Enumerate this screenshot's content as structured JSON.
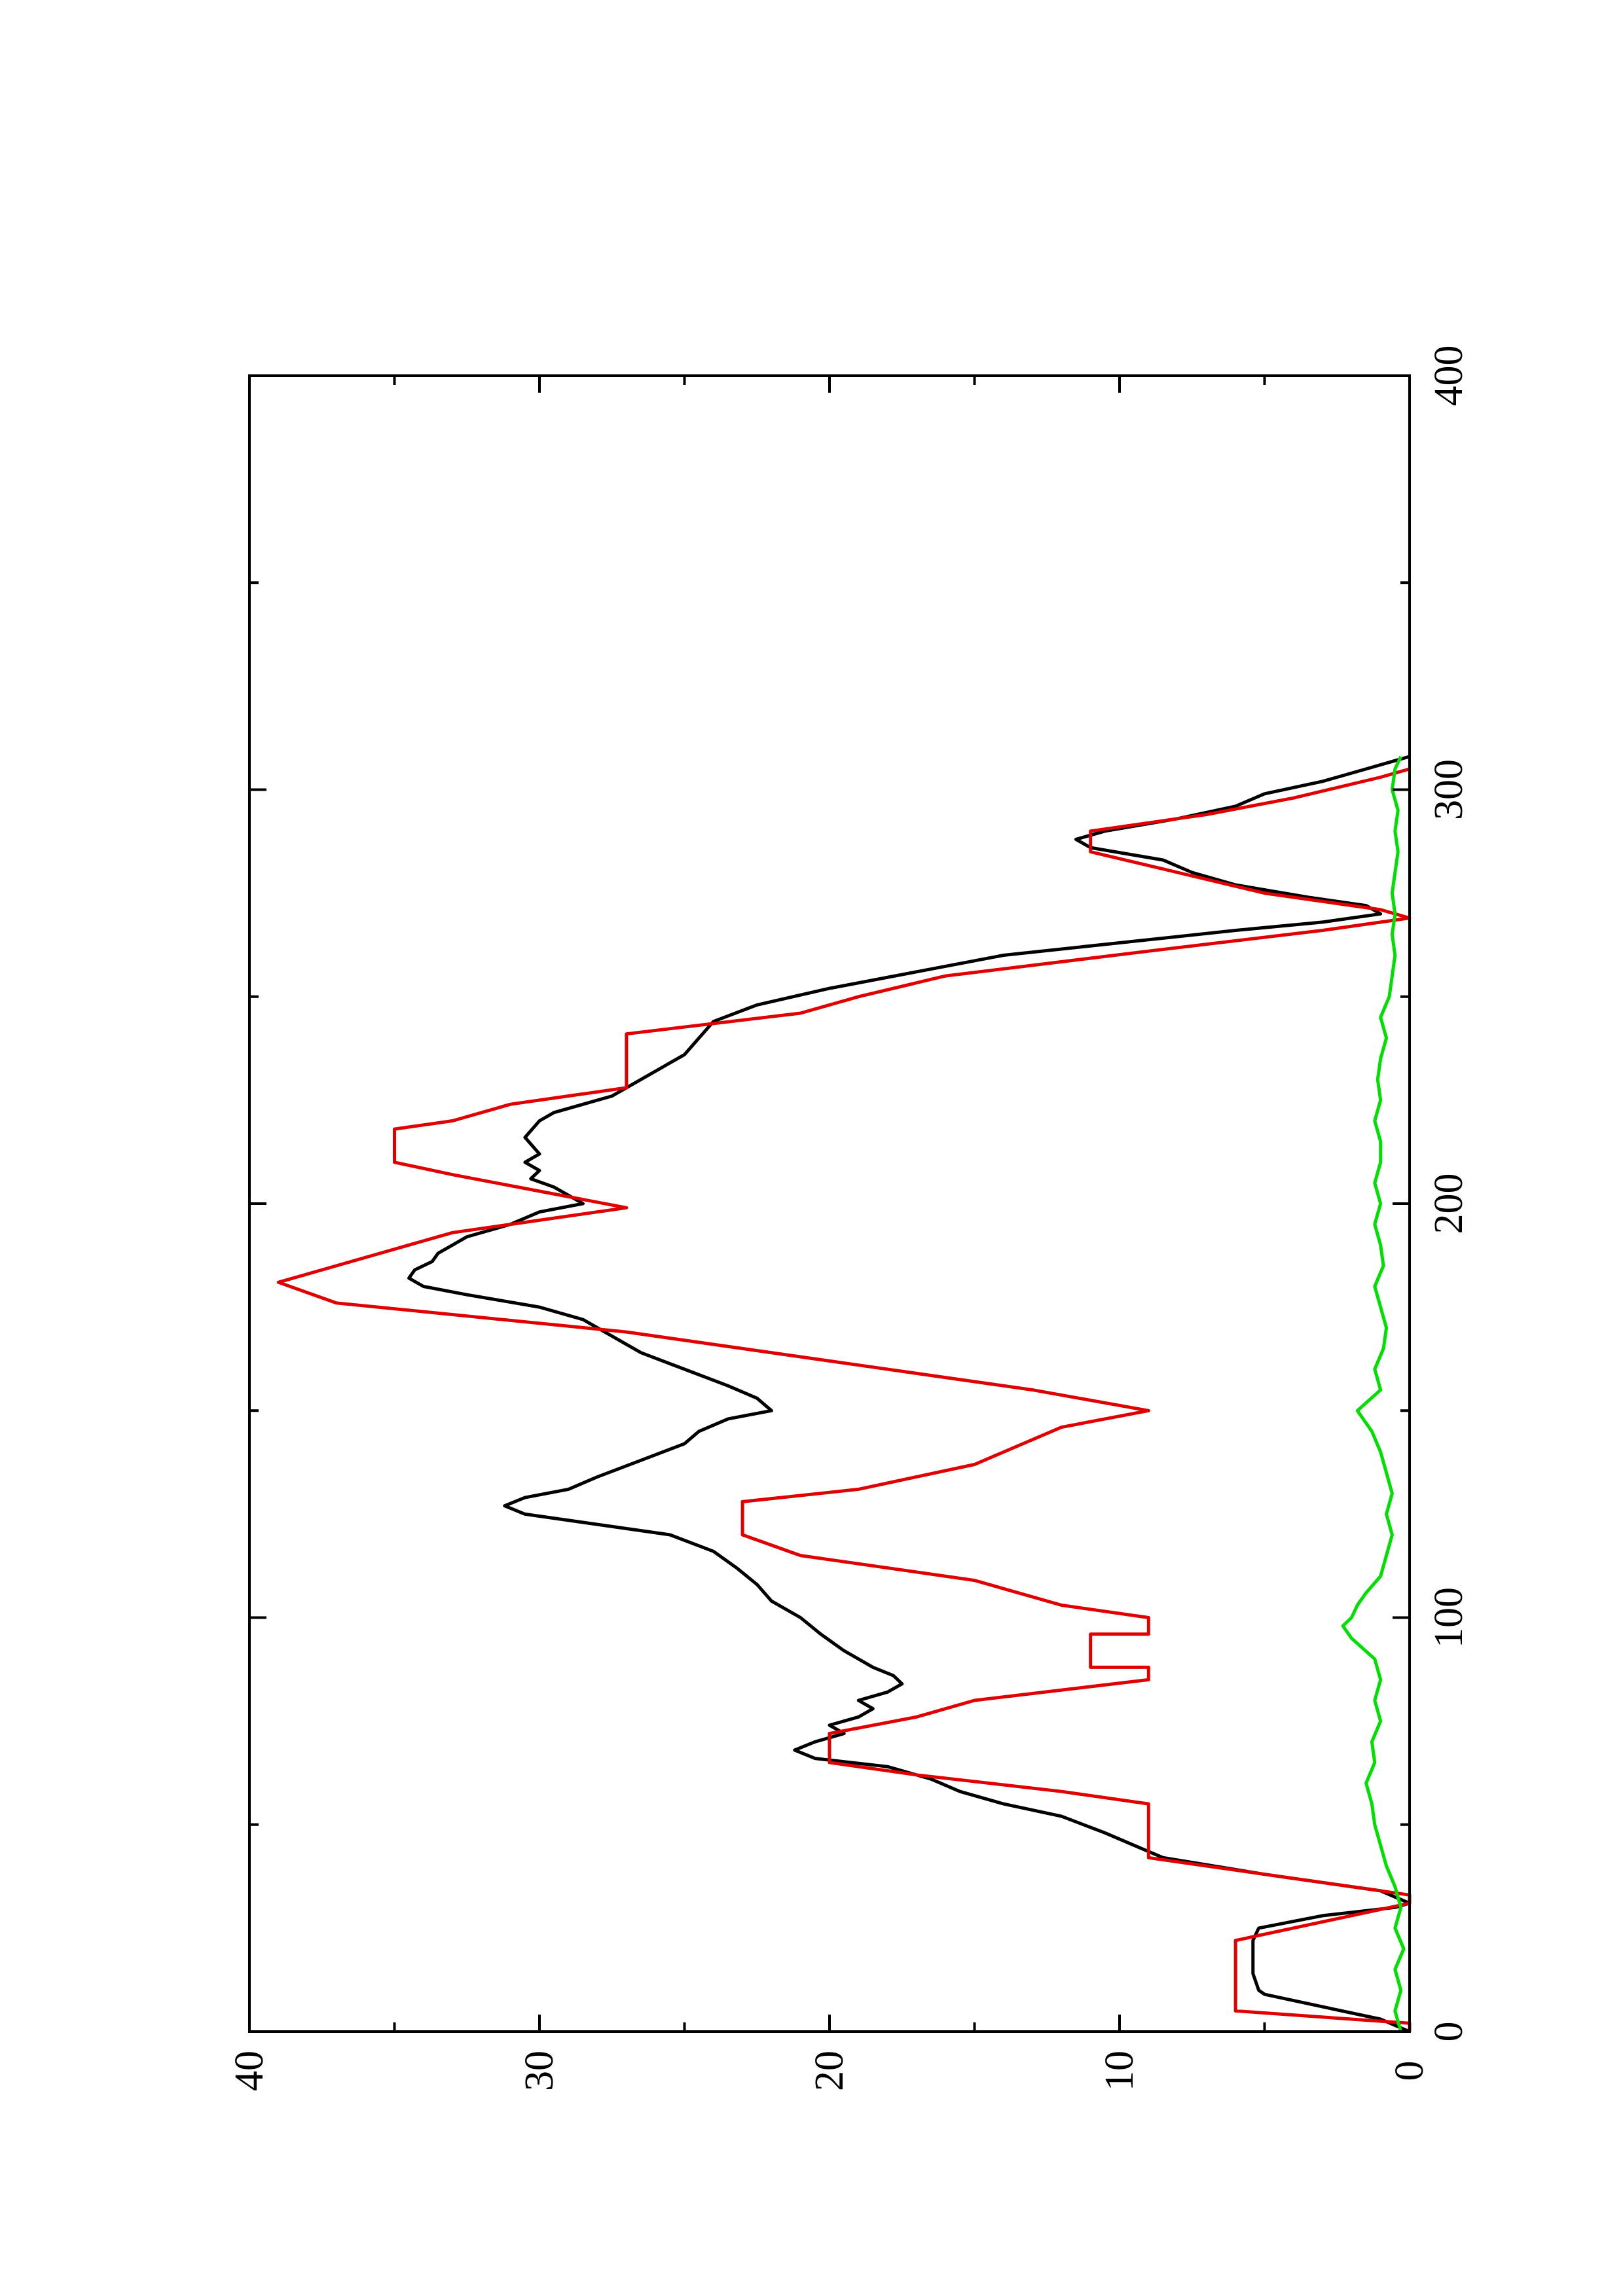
{
  "chart_data": {
    "type": "line",
    "title": "",
    "xlabel": "",
    "ylabel": "",
    "orientation": "rotated 90 degrees counter-clockwise",
    "xlim": [
      0,
      400
    ],
    "ylim": [
      0,
      40
    ],
    "x_ticks": [
      "0",
      "100",
      "200",
      "300",
      "400"
    ],
    "y_ticks": [
      "0",
      "10",
      "20",
      "30",
      "40"
    ],
    "grid": false,
    "legend": "none",
    "series": [
      {
        "color": "#000000",
        "step": false,
        "points": [
          [
            0,
            0
          ],
          [
            3,
            1
          ],
          [
            6,
            3
          ],
          [
            9,
            5
          ],
          [
            10,
            5.2
          ],
          [
            14,
            5.4
          ],
          [
            18,
            5.4
          ],
          [
            22,
            5.4
          ],
          [
            25,
            5.2
          ],
          [
            28,
            3
          ],
          [
            30,
            0.5
          ],
          [
            31,
            0
          ],
          [
            34,
            1
          ],
          [
            38,
            5
          ],
          [
            42,
            8.5
          ],
          [
            45,
            9.5
          ],
          [
            48,
            10.5
          ],
          [
            52,
            12
          ],
          [
            55,
            14
          ],
          [
            58,
            15.5
          ],
          [
            61,
            16.5
          ],
          [
            64,
            18
          ],
          [
            66,
            20.5
          ],
          [
            68,
            21.2
          ],
          [
            70,
            20.5
          ],
          [
            72,
            19.5
          ],
          [
            74,
            20
          ],
          [
            76,
            19
          ],
          [
            78,
            18.5
          ],
          [
            80,
            19
          ],
          [
            82,
            18
          ],
          [
            84,
            17.5
          ],
          [
            86,
            17.8
          ],
          [
            88,
            18.5
          ],
          [
            92,
            19.5
          ],
          [
            96,
            20.3
          ],
          [
            100,
            21
          ],
          [
            104,
            22
          ],
          [
            108,
            22.5
          ],
          [
            112,
            23.2
          ],
          [
            116,
            24
          ],
          [
            120,
            25.5
          ],
          [
            123,
            28.5
          ],
          [
            125,
            30.5
          ],
          [
            127,
            31.2
          ],
          [
            129,
            30.5
          ],
          [
            131,
            29
          ],
          [
            134,
            28
          ],
          [
            138,
            26.5
          ],
          [
            142,
            25
          ],
          [
            145,
            24.5
          ],
          [
            148,
            23.5
          ],
          [
            150,
            22
          ],
          [
            153,
            22.5
          ],
          [
            156,
            23.5
          ],
          [
            160,
            25
          ],
          [
            164,
            26.5
          ],
          [
            168,
            27.5
          ],
          [
            172,
            28.5
          ],
          [
            175,
            30
          ],
          [
            178,
            32.5
          ],
          [
            180,
            34
          ],
          [
            182,
            34.5
          ],
          [
            184,
            34.3
          ],
          [
            186,
            33.7
          ],
          [
            188,
            33.5
          ],
          [
            190,
            33
          ],
          [
            192,
            32.5
          ],
          [
            195,
            31
          ],
          [
            198,
            30
          ],
          [
            200,
            28.5
          ],
          [
            202,
            29
          ],
          [
            204,
            29.5
          ],
          [
            206,
            30.3
          ],
          [
            208,
            30
          ],
          [
            210,
            30.5
          ],
          [
            212,
            30
          ],
          [
            216,
            30.5
          ],
          [
            220,
            30
          ],
          [
            222,
            29.5
          ],
          [
            224,
            28.5
          ],
          [
            226,
            27.5
          ],
          [
            230,
            26.5
          ],
          [
            236,
            25
          ],
          [
            240,
            24.5
          ],
          [
            244,
            24
          ],
          [
            248,
            22.5
          ],
          [
            252,
            20
          ],
          [
            256,
            17
          ],
          [
            260,
            14
          ],
          [
            263,
            10
          ],
          [
            266,
            6
          ],
          [
            268,
            3
          ],
          [
            270,
            1
          ],
          [
            272,
            1.5
          ],
          [
            274,
            3.5
          ],
          [
            277,
            6
          ],
          [
            280,
            7.5
          ],
          [
            283,
            8.5
          ],
          [
            286,
            11
          ],
          [
            288,
            11.5
          ],
          [
            290,
            10.5
          ],
          [
            293,
            8
          ],
          [
            296,
            6
          ],
          [
            299,
            5
          ],
          [
            302,
            3
          ],
          [
            305,
            1.5
          ],
          [
            307,
            0.5
          ],
          [
            308,
            0
          ]
        ]
      },
      {
        "color": "#e00000",
        "step": true,
        "points": [
          [
            0,
            0
          ],
          [
            2,
            0
          ],
          [
            5,
            6
          ],
          [
            22,
            6
          ],
          [
            31,
            0
          ],
          [
            33,
            0
          ],
          [
            42,
            9
          ],
          [
            55,
            9
          ],
          [
            58,
            12
          ],
          [
            62,
            17
          ],
          [
            65,
            20
          ],
          [
            72,
            20
          ],
          [
            76,
            17
          ],
          [
            80,
            15
          ],
          [
            85,
            9
          ],
          [
            88,
            9
          ],
          [
            88,
            11
          ],
          [
            96,
            11
          ],
          [
            96,
            9
          ],
          [
            100,
            9
          ],
          [
            103,
            12
          ],
          [
            109,
            15
          ],
          [
            115,
            21
          ],
          [
            120,
            23
          ],
          [
            128,
            23
          ],
          [
            131,
            19
          ],
          [
            137,
            15
          ],
          [
            146,
            12
          ],
          [
            150,
            9
          ],
          [
            155,
            13
          ],
          [
            161,
            19
          ],
          [
            169,
            27
          ],
          [
            176,
            37
          ],
          [
            181,
            39
          ],
          [
            185,
            37
          ],
          [
            193,
            33
          ],
          [
            199,
            27
          ],
          [
            203,
            30
          ],
          [
            207,
            33
          ],
          [
            210,
            35
          ],
          [
            218,
            35
          ],
          [
            220,
            33
          ],
          [
            224,
            31
          ],
          [
            228,
            27
          ],
          [
            241,
            27
          ],
          [
            246,
            21
          ],
          [
            250,
            19
          ],
          [
            255,
            16
          ],
          [
            261,
            9
          ],
          [
            266,
            3
          ],
          [
            269,
            0
          ],
          [
            271,
            1
          ],
          [
            275,
            5
          ],
          [
            280,
            8
          ],
          [
            285,
            11
          ],
          [
            290,
            11
          ],
          [
            294,
            7
          ],
          [
            298,
            4
          ],
          [
            303,
            1
          ],
          [
            305,
            0
          ]
        ]
      },
      {
        "color": "#00e000",
        "step": false,
        "points": [
          [
            0,
            0.3
          ],
          [
            5,
            0.5
          ],
          [
            10,
            0.3
          ],
          [
            15,
            0.5
          ],
          [
            20,
            0.2
          ],
          [
            25,
            0.5
          ],
          [
            30,
            0.3
          ],
          [
            35,
            0.5
          ],
          [
            40,
            0.8
          ],
          [
            45,
            1
          ],
          [
            50,
            1.2
          ],
          [
            55,
            1.3
          ],
          [
            60,
            1.5
          ],
          [
            65,
            1.2
          ],
          [
            70,
            1.3
          ],
          [
            75,
            1
          ],
          [
            80,
            1.2
          ],
          [
            85,
            1
          ],
          [
            90,
            1.2
          ],
          [
            95,
            2
          ],
          [
            98,
            2.3
          ],
          [
            100,
            2
          ],
          [
            103,
            1.8
          ],
          [
            106,
            1.5
          ],
          [
            110,
            1
          ],
          [
            115,
            0.8
          ],
          [
            120,
            0.6
          ],
          [
            125,
            0.8
          ],
          [
            130,
            0.6
          ],
          [
            135,
            0.8
          ],
          [
            140,
            1
          ],
          [
            145,
            1.3
          ],
          [
            150,
            1.8
          ],
          [
            155,
            1
          ],
          [
            160,
            1.2
          ],
          [
            165,
            0.9
          ],
          [
            170,
            0.8
          ],
          [
            175,
            1
          ],
          [
            180,
            1.2
          ],
          [
            185,
            0.9
          ],
          [
            190,
            1
          ],
          [
            195,
            1.2
          ],
          [
            200,
            1
          ],
          [
            205,
            1.2
          ],
          [
            210,
            1
          ],
          [
            215,
            1
          ],
          [
            220,
            1.2
          ],
          [
            225,
            1
          ],
          [
            230,
            1.1
          ],
          [
            235,
            1
          ],
          [
            240,
            0.8
          ],
          [
            245,
            1
          ],
          [
            250,
            0.7
          ],
          [
            255,
            0.6
          ],
          [
            260,
            0.5
          ],
          [
            265,
            0.6
          ],
          [
            270,
            0.5
          ],
          [
            275,
            0.6
          ],
          [
            280,
            0.5
          ],
          [
            285,
            0.4
          ],
          [
            290,
            0.5
          ],
          [
            295,
            0.4
          ],
          [
            300,
            0.6
          ],
          [
            305,
            0.5
          ],
          [
            308,
            0.3
          ]
        ]
      }
    ]
  }
}
